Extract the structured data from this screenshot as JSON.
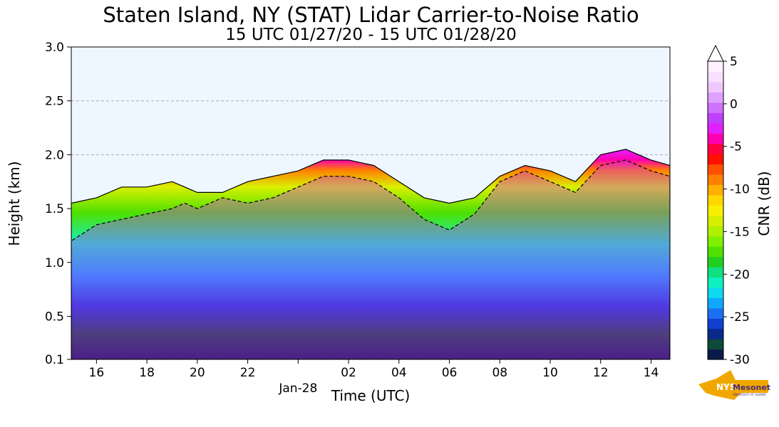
{
  "chart_data": {
    "type": "heatmap",
    "title": "Staten Island, NY (STAT) Lidar Carrier-to-Noise Ratio",
    "subtitle": "15 UTC 01/27/20 - 15 UTC 01/28/20",
    "xlabel": "Time (UTC)",
    "ylabel": "Height (km)",
    "x_ticks": [
      "16",
      "18",
      "20",
      "22",
      "Jan-28",
      "02",
      "04",
      "06",
      "08",
      "10",
      "12",
      "14"
    ],
    "x_tick_hours": [
      16,
      18,
      20,
      22,
      24,
      26,
      28,
      30,
      32,
      34,
      36,
      38
    ],
    "xlim_hours": [
      15,
      38.75
    ],
    "y_ticks": [
      "0.1",
      "0.5",
      "1.0",
      "1.5",
      "2.0",
      "2.5",
      "3.0"
    ],
    "y_tick_values": [
      0.1,
      0.5,
      1.0,
      1.5,
      2.0,
      2.5,
      3.0
    ],
    "ylim": [
      0.1,
      3.0
    ],
    "grid": "horizontal-dashed",
    "background": "#eef7ff",
    "colorbar": {
      "label": "CNR (dB)",
      "ticks": [
        "5",
        "0",
        "-5",
        "-10",
        "-15",
        "-20",
        "-25",
        "-30"
      ],
      "tick_values": [
        5,
        0,
        -5,
        -10,
        -15,
        -20,
        -25,
        -30
      ],
      "range": [
        -30,
        5
      ],
      "extend": "max",
      "colors": [
        "#0a1a4a",
        "#0d4a3a",
        "#0a2a8a",
        "#1040d0",
        "#1a70f0",
        "#10a8ff",
        "#10d8f0",
        "#10f0c0",
        "#10e080",
        "#20d020",
        "#50e000",
        "#80f000",
        "#b0f000",
        "#d8f000",
        "#f8f000",
        "#ffd800",
        "#ffb000",
        "#ff8000",
        "#ff5000",
        "#ff1000",
        "#ff0040",
        "#ff00b0",
        "#e020ff",
        "#c040ff",
        "#d070ff",
        "#e0a0ff",
        "#f0c8ff",
        "#f8e0ff",
        "#fff0ff"
      ]
    },
    "cnr_layers": [
      {
        "name": "aerosol-layer",
        "t": [
          15,
          16,
          17,
          18,
          19,
          20,
          21,
          22,
          23,
          24,
          25,
          26,
          27,
          28,
          29,
          30,
          31,
          32,
          33,
          34,
          35,
          36,
          37,
          38,
          38.75
        ],
        "top_km": [
          1.55,
          1.6,
          1.7,
          1.7,
          1.75,
          1.65,
          1.65,
          1.75,
          1.8,
          1.85,
          1.95,
          1.95,
          1.9,
          1.75,
          1.6,
          1.55,
          1.6,
          1.8,
          1.9,
          1.85,
          1.75,
          2.0,
          2.05,
          1.95,
          1.9
        ]
      },
      {
        "name": "elevated-peak",
        "t": [
          15,
          16,
          17,
          18,
          19,
          19.5,
          20,
          21,
          22,
          23,
          24,
          25,
          26,
          27,
          28,
          29,
          30,
          31,
          32,
          33,
          34,
          35,
          36,
          37,
          38,
          38.75
        ],
        "top_km": [
          1.2,
          1.35,
          1.4,
          1.45,
          1.5,
          1.55,
          1.5,
          1.6,
          1.55,
          1.6,
          1.7,
          1.8,
          1.8,
          1.75,
          1.6,
          1.4,
          1.3,
          1.45,
          1.75,
          1.85,
          1.75,
          1.65,
          1.9,
          1.95,
          1.85,
          1.8
        ]
      }
    ]
  },
  "logo": {
    "text": "NYS",
    "name": "Mesonet",
    "sub": "UNIVERSITY AT ALBANY"
  }
}
